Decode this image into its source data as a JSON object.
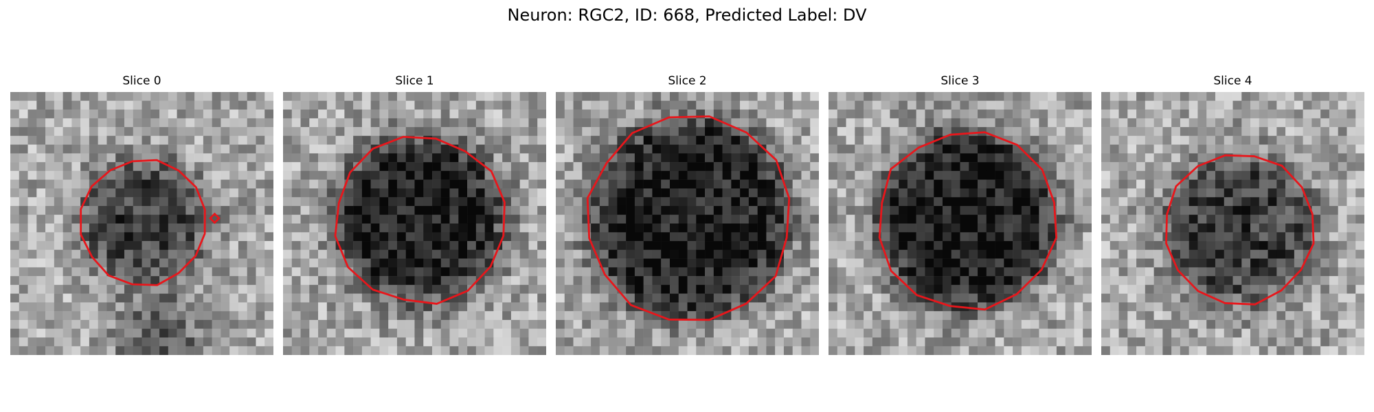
{
  "figure": {
    "title": "Neuron: RGC2, ID: 668, Predicted Label: DV"
  },
  "panels": [
    {
      "title": "Slice 0",
      "seed": 11,
      "darkness": 0.42,
      "radius": 7.2,
      "cx": 15.3,
      "cy": 14.8,
      "extra_blob": true
    },
    {
      "title": "Slice 1",
      "seed": 23,
      "darkness": 0.55,
      "radius": 9.6,
      "cx": 15.6,
      "cy": 14.5,
      "extra_blob": false
    },
    {
      "title": "Slice 2",
      "seed": 37,
      "darkness": 0.55,
      "radius": 11.6,
      "cx": 15.2,
      "cy": 14.4,
      "extra_blob": false
    },
    {
      "title": "Slice 3",
      "seed": 49,
      "darkness": 0.58,
      "radius": 10.2,
      "cx": 15.8,
      "cy": 14.6,
      "extra_blob": false
    },
    {
      "title": "Slice 4",
      "seed": 61,
      "darkness": 0.42,
      "radius": 8.6,
      "cx": 15.8,
      "cy": 15.6,
      "extra_blob": false
    }
  ],
  "colors": {
    "contour": "#e8161b"
  }
}
